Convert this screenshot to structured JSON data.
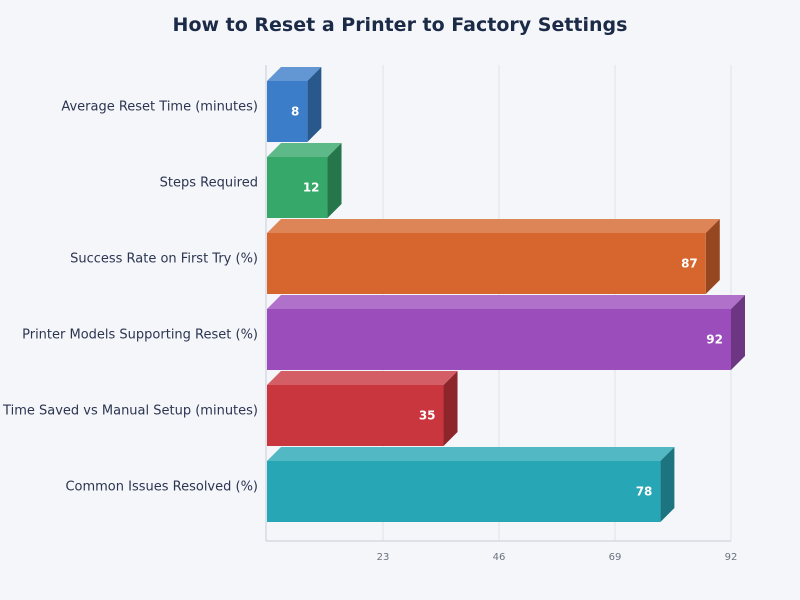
{
  "chart_data": {
    "type": "bar",
    "orientation": "horizontal",
    "title": "How to Reset a Printer to Factory Settings",
    "categories": [
      "Average Reset Time (minutes)",
      "Steps Required",
      "Success Rate on First Try (%)",
      "Printer Models Supporting Reset (%)",
      "Time Saved vs Manual Setup (minutes)",
      "Common Issues Resolved (%)"
    ],
    "values": [
      8,
      12,
      87,
      92,
      35,
      78
    ],
    "colors": [
      "#3b7dc8",
      "#35a86a",
      "#d6662d",
      "#9b4dbb",
      "#c9363e",
      "#27a6b5"
    ],
    "xlim": [
      0,
      92
    ],
    "xticks": [
      23,
      46,
      69,
      92
    ],
    "grid": true,
    "legend": "none"
  }
}
